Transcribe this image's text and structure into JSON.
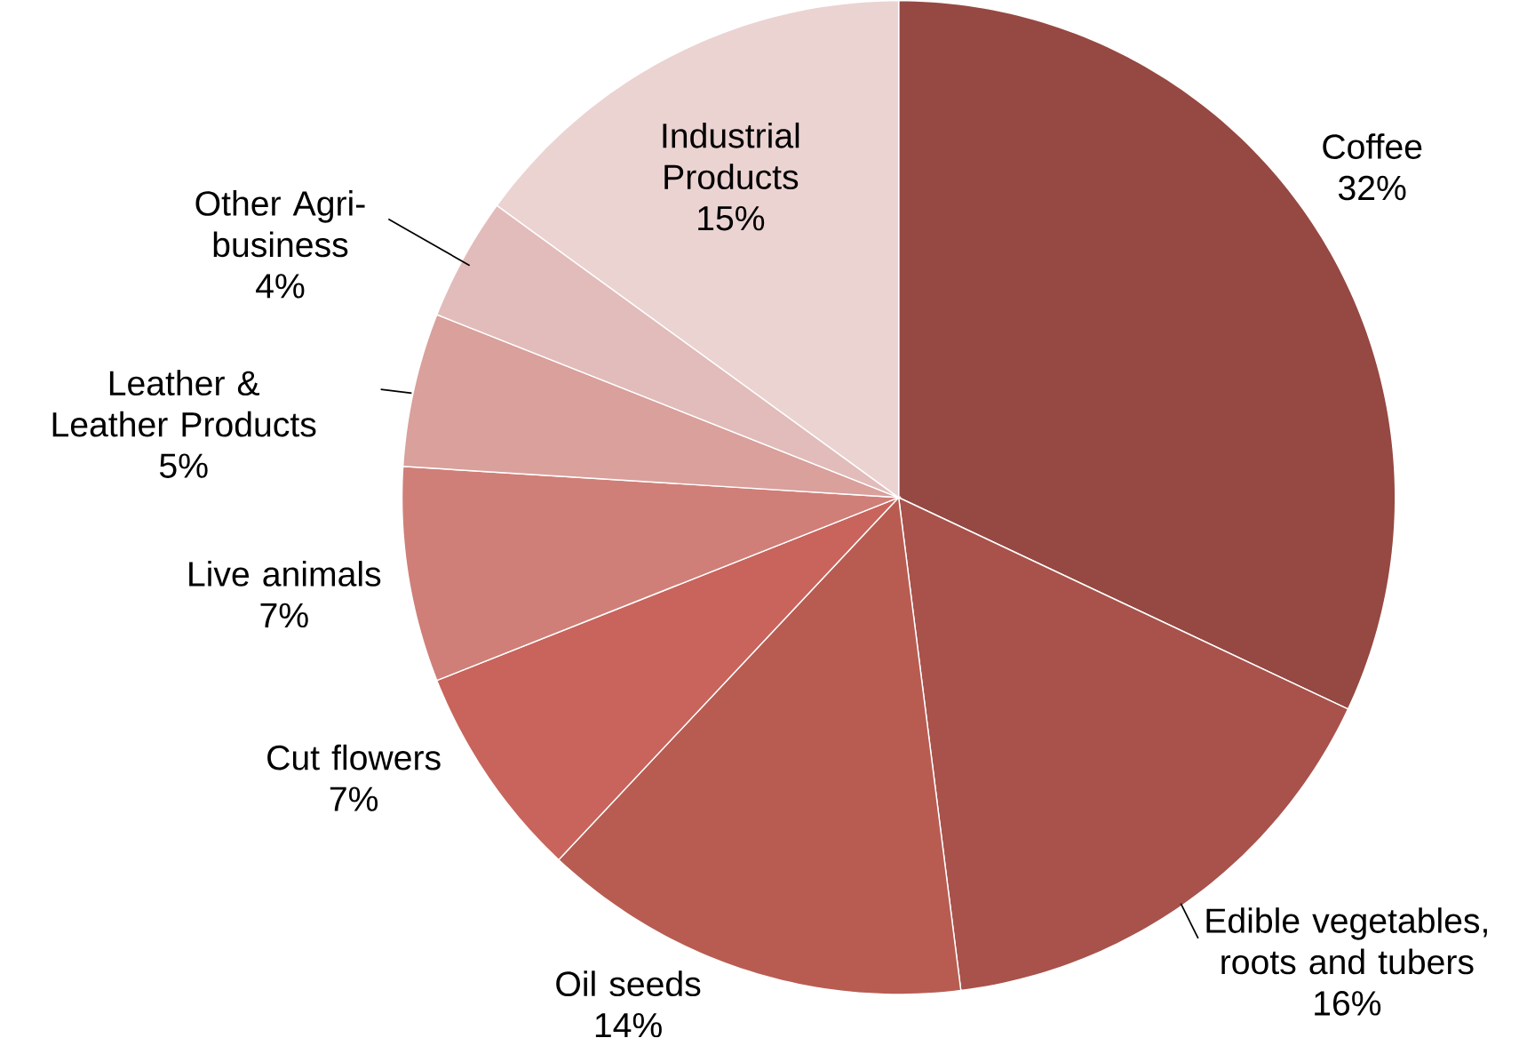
{
  "chart_data": {
    "type": "pie",
    "categories": [
      "Coffee",
      "Edible vegetables, roots and tubers",
      "Oil seeds",
      "Cut flowers",
      "Live animals",
      "Leather & Leather Products",
      "Other Agri-business",
      "Industrial Products"
    ],
    "values": [
      32,
      16,
      14,
      7,
      7,
      5,
      4,
      15
    ],
    "value_labels": [
      "32%",
      "16%",
      "14%",
      "7%",
      "7%",
      "5%",
      "4%",
      "15%"
    ],
    "colors": [
      "#964842",
      "#a8524b",
      "#b85c52",
      "#c8645c",
      "#cf7f78",
      "#d9a09c",
      "#e2bcba",
      "#ebd3d2"
    ]
  }
}
